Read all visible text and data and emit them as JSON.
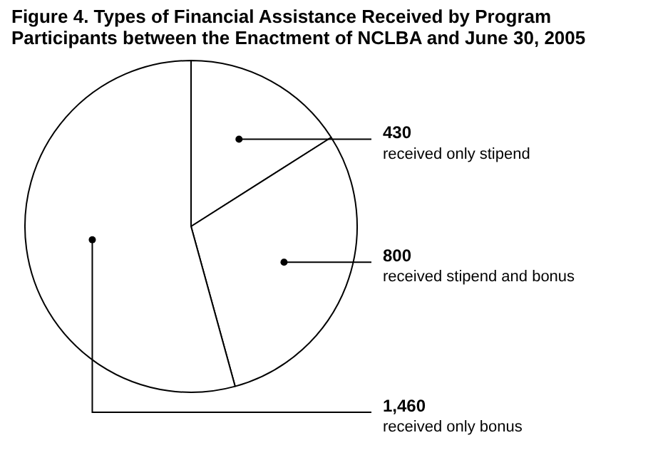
{
  "chart_data": {
    "type": "pie",
    "title": "Figure 4. Types of Financial Assistance Received by Program Participants between the Enactment of NCLBA and June 30, 2005",
    "categories": [
      "received only stipend",
      "received stipend and bonus",
      "received only bonus"
    ],
    "values": [
      430,
      800,
      1460
    ],
    "colors": [
      "#ffffff",
      "#ffffff",
      "#ffffff"
    ],
    "value_labels": [
      "430",
      "800",
      "1,460"
    ]
  }
}
